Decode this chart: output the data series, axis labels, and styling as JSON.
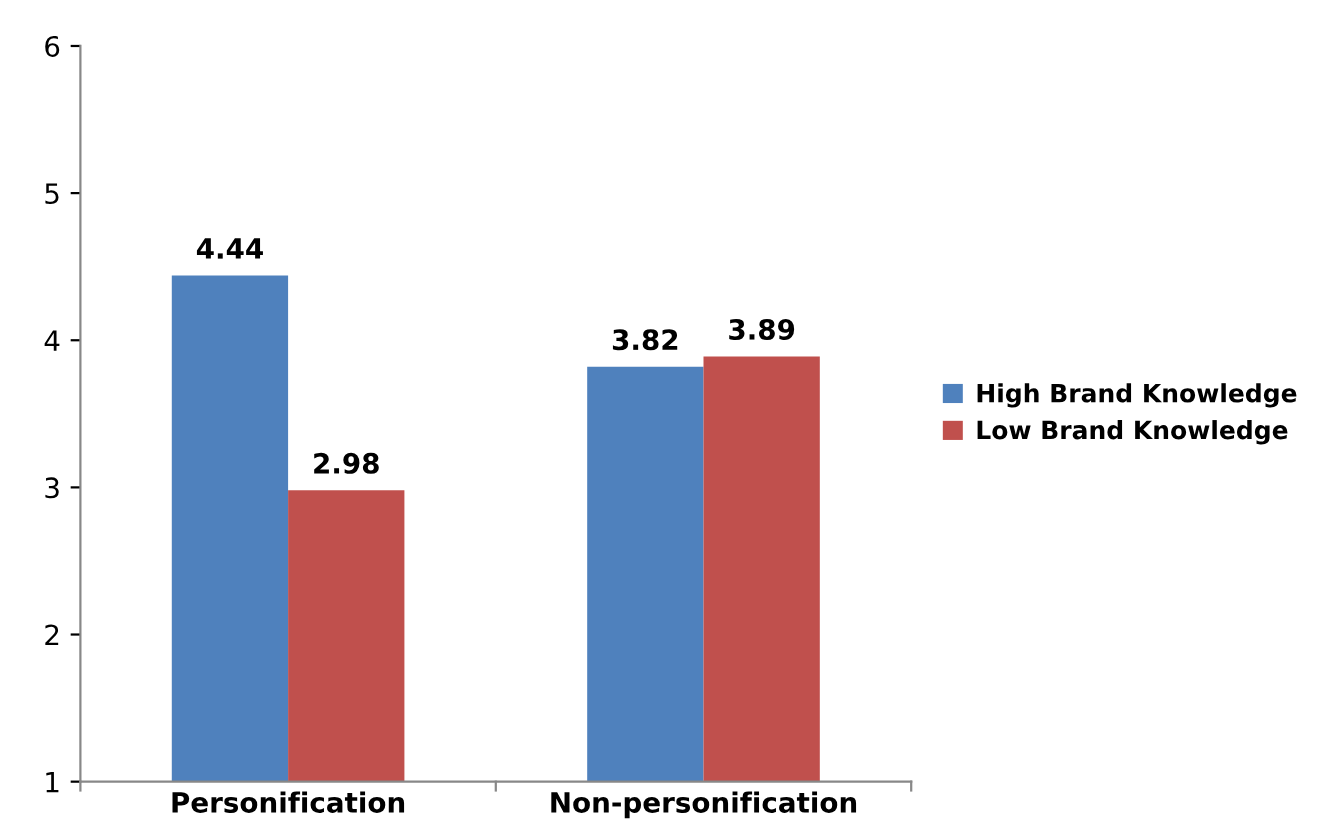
{
  "chart_data": {
    "type": "bar",
    "categories": [
      "Personification",
      "Non-personification"
    ],
    "series": [
      {
        "name": "High Brand Knowledge",
        "color": "#4f81bd",
        "values": [
          4.44,
          3.82
        ]
      },
      {
        "name": "Low Brand Knowledge",
        "color": "#c0504d",
        "values": [
          2.98,
          3.89
        ]
      }
    ],
    "ylim": [
      1,
      6
    ],
    "yticks": [
      1,
      2,
      3,
      4,
      5,
      6
    ],
    "grid": false,
    "legend": "right",
    "data_labels": true
  }
}
